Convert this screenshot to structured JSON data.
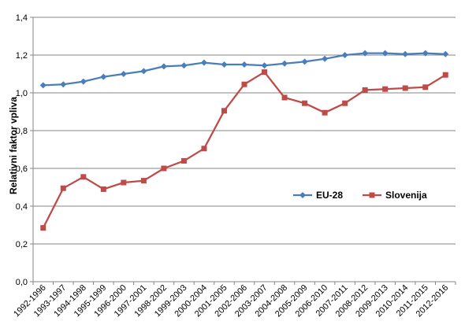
{
  "chart_data": {
    "type": "line",
    "title": "",
    "xlabel": "",
    "ylabel": "Relativni faktor vpliva",
    "categories": [
      "1992-1996",
      "1993-1997",
      "1994-1998",
      "1995-1999",
      "1996-2000",
      "1997-2001",
      "1998-2002",
      "1999-2003",
      "2000-2004",
      "2001-2005",
      "2002-2006",
      "2003-2007",
      "2004-2008",
      "2005-2009",
      "2006-2010",
      "2007-2011",
      "2008-2012",
      "2009-2013",
      "2010-2014",
      "2011-2015",
      "2012-2016"
    ],
    "ylim": [
      0,
      1.4
    ],
    "yticks": [
      "0,0",
      "0,2",
      "0,4",
      "0,6",
      "0,8",
      "1,0",
      "1,2",
      "1,4"
    ],
    "grid": true,
    "legend_position": "middle-right",
    "series": [
      {
        "name": "EU-28",
        "color": "#4a7ebb",
        "marker": "diamond",
        "values": [
          1.04,
          1.045,
          1.06,
          1.085,
          1.1,
          1.115,
          1.14,
          1.145,
          1.16,
          1.15,
          1.15,
          1.145,
          1.155,
          1.165,
          1.18,
          1.2,
          1.21,
          1.21,
          1.205,
          1.21,
          1.205
        ]
      },
      {
        "name": "Slovenija",
        "color": "#be4b48",
        "marker": "square",
        "values": [
          0.285,
          0.495,
          0.555,
          0.49,
          0.525,
          0.535,
          0.6,
          0.64,
          0.705,
          0.905,
          1.045,
          1.11,
          0.975,
          0.945,
          0.895,
          0.945,
          1.015,
          1.02,
          1.025,
          1.03,
          1.095
        ]
      }
    ]
  }
}
